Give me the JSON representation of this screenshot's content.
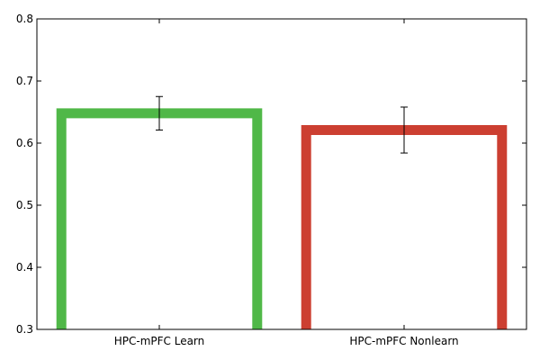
{
  "chart_data": {
    "type": "bar",
    "title": "",
    "xlabel": "",
    "ylabel": "",
    "categories": [
      "HPC-mPFC Learn",
      "HPC-mPFC Nonlearn"
    ],
    "values": [
      0.648,
      0.621
    ],
    "errors": [
      0.027,
      0.037
    ],
    "colors": [
      "#50b848",
      "#cc3f31"
    ],
    "ylim": [
      0.3,
      0.8
    ],
    "yticks": [
      "0.3",
      "0.4",
      "0.5",
      "0.6",
      "0.7",
      "0.8"
    ],
    "bar_style": "outline",
    "grid": false,
    "legend": "none"
  }
}
